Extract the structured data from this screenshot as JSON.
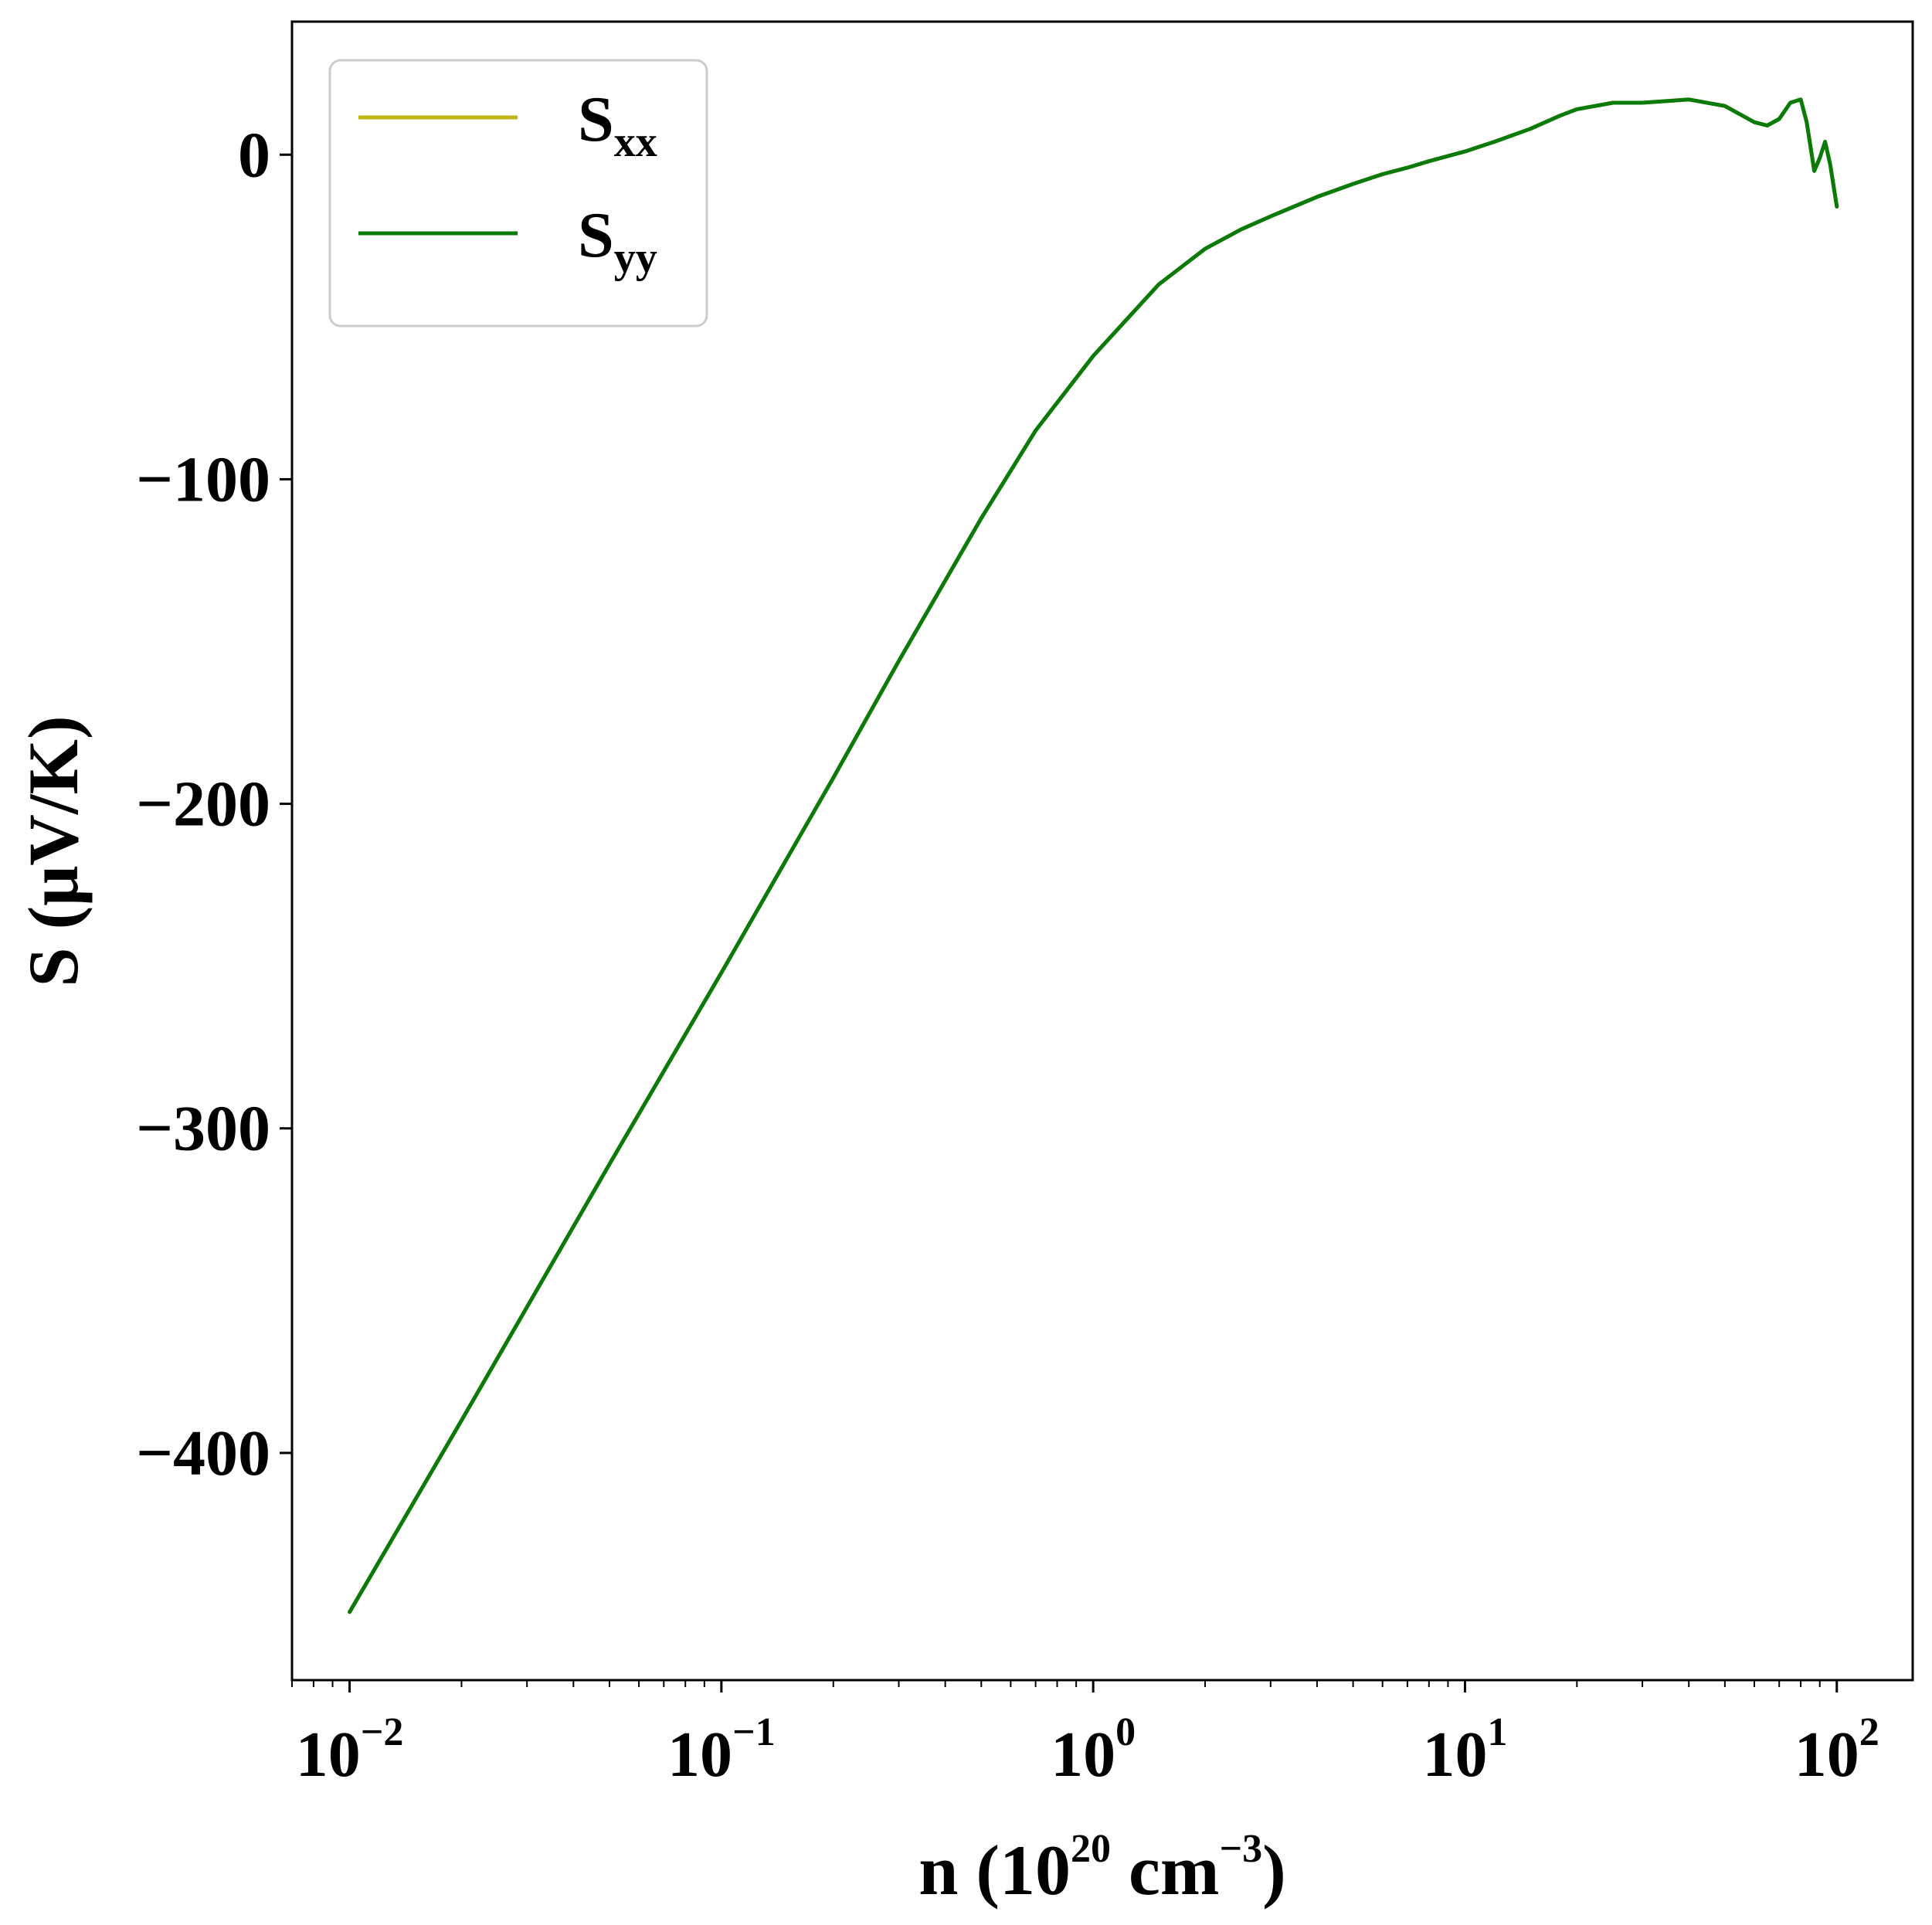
{
  "chart_data": {
    "type": "line",
    "title": "",
    "xlabel": "n (10^20 cm^-3)",
    "xlabel_parts": {
      "prefix": "n (10",
      "exp1": "20",
      "mid": " cm",
      "exp2": "−3",
      "suffix": ")"
    },
    "ylabel": "S (μV/K)",
    "xscale": "log",
    "xlim": [
      0.007,
      160
    ],
    "ylim": [
      -470,
      41
    ],
    "grid": false,
    "legend_position": "top-left",
    "x_ticks": [
      {
        "value": 0.01,
        "base": "10",
        "exp": "−2"
      },
      {
        "value": 0.1,
        "base": "10",
        "exp": "−1"
      },
      {
        "value": 1,
        "base": "10",
        "exp": "0"
      },
      {
        "value": 10,
        "base": "10",
        "exp": "1"
      },
      {
        "value": 100,
        "base": "10",
        "exp": "2"
      }
    ],
    "y_ticks": [
      {
        "value": 0,
        "label": "0"
      },
      {
        "value": -100,
        "label": "−100"
      },
      {
        "value": -200,
        "label": "−200"
      },
      {
        "value": -300,
        "label": "−300"
      },
      {
        "value": -400,
        "label": "−400"
      }
    ],
    "x": [
      0.01,
      0.02,
      0.05,
      0.1,
      0.2,
      0.3,
      0.5,
      0.7,
      1.0,
      1.5,
      2.0,
      2.5,
      3.0,
      4.0,
      5.0,
      6.0,
      7.0,
      8.0,
      10,
      12,
      15,
      18,
      20,
      25,
      30,
      40,
      50,
      60,
      65,
      70,
      75,
      80,
      83,
      87,
      90,
      93,
      96,
      100
    ],
    "series": [
      {
        "name": "S",
        "sub": "xx",
        "color": "#c2b514",
        "values": [
          -449,
          -390,
          -311,
          -252,
          -192,
          -156,
          -112,
          -85,
          -62,
          -40,
          -29,
          -23,
          -19,
          -13,
          -9,
          -6,
          -4,
          -2,
          1,
          4,
          8,
          12,
          14,
          16,
          16,
          17,
          15,
          10,
          9,
          11,
          16,
          17,
          10,
          -5,
          -1,
          4,
          -3,
          -16
        ]
      },
      {
        "name": "S",
        "sub": "yy",
        "color": "#0a7b0a",
        "values": [
          -449,
          -390,
          -311,
          -252,
          -192,
          -156,
          -112,
          -85,
          -62,
          -40,
          -29,
          -23,
          -19,
          -13,
          -9,
          -6,
          -4,
          -2,
          1,
          4,
          8,
          12,
          14,
          16,
          16,
          17,
          15,
          10,
          9,
          11,
          16,
          17,
          10,
          -5,
          -1,
          4,
          -3,
          -16
        ]
      }
    ]
  }
}
